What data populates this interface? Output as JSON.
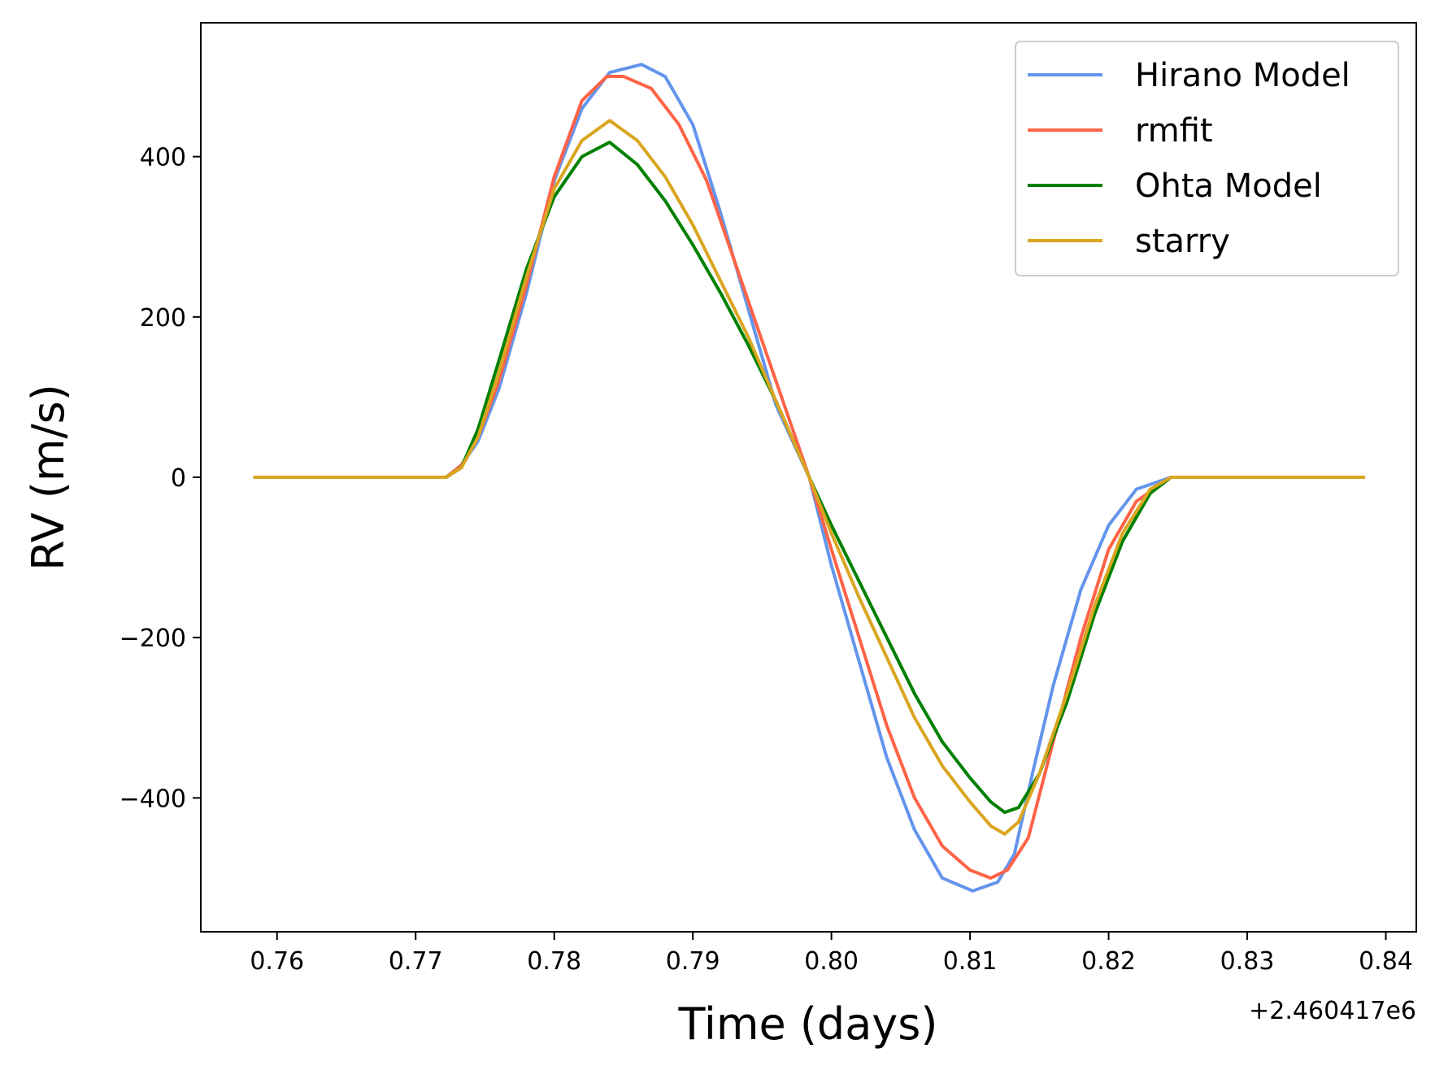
{
  "chart_data": {
    "type": "line",
    "title": "",
    "xlabel": "Time (days)",
    "ylabel": "RV (m/s)",
    "x_offset_label": "+2.460417e6",
    "xlim": [
      0.7545,
      0.8422
    ],
    "ylim": [
      -567,
      567
    ],
    "x_ticks": [
      0.76,
      0.77,
      0.78,
      0.79,
      0.8,
      0.81,
      0.82,
      0.83,
      0.84
    ],
    "x_tick_labels": [
      "0.76",
      "0.77",
      "0.78",
      "0.79",
      "0.80",
      "0.81",
      "0.82",
      "0.83",
      "0.84"
    ],
    "y_ticks": [
      -400,
      -200,
      0,
      200,
      400
    ],
    "y_tick_labels": [
      "−400",
      "−200",
      "0",
      "200",
      "400"
    ],
    "grid": false,
    "legend_position": "top-right",
    "series": [
      {
        "name": "Hirano Model",
        "color": "#6495ED",
        "points": [
          [
            0.7583,
            0
          ],
          [
            0.7722,
            0
          ],
          [
            0.7733,
            15
          ],
          [
            0.7745,
            45
          ],
          [
            0.776,
            110
          ],
          [
            0.778,
            230
          ],
          [
            0.78,
            370
          ],
          [
            0.782,
            460
          ],
          [
            0.784,
            505
          ],
          [
            0.7863,
            515
          ],
          [
            0.788,
            500
          ],
          [
            0.79,
            440
          ],
          [
            0.792,
            330
          ],
          [
            0.794,
            210
          ],
          [
            0.796,
            90
          ],
          [
            0.7984,
            0
          ],
          [
            0.8,
            -110
          ],
          [
            0.802,
            -230
          ],
          [
            0.804,
            -350
          ],
          [
            0.806,
            -440
          ],
          [
            0.808,
            -500
          ],
          [
            0.8102,
            -516
          ],
          [
            0.812,
            -505
          ],
          [
            0.8132,
            -470
          ],
          [
            0.8145,
            -370
          ],
          [
            0.816,
            -260
          ],
          [
            0.818,
            -140
          ],
          [
            0.82,
            -60
          ],
          [
            0.822,
            -15
          ],
          [
            0.8245,
            0
          ],
          [
            0.8385,
            0
          ]
        ]
      },
      {
        "name": "rmfit",
        "color": "#FF6347",
        "points": [
          [
            0.7583,
            0
          ],
          [
            0.7722,
            0
          ],
          [
            0.7733,
            15
          ],
          [
            0.7745,
            50
          ],
          [
            0.776,
            120
          ],
          [
            0.778,
            240
          ],
          [
            0.78,
            375
          ],
          [
            0.782,
            470
          ],
          [
            0.7838,
            500
          ],
          [
            0.785,
            500
          ],
          [
            0.787,
            485
          ],
          [
            0.789,
            440
          ],
          [
            0.791,
            370
          ],
          [
            0.793,
            270
          ],
          [
            0.795,
            170
          ],
          [
            0.797,
            70
          ],
          [
            0.7984,
            0
          ],
          [
            0.8,
            -90
          ],
          [
            0.802,
            -200
          ],
          [
            0.804,
            -310
          ],
          [
            0.806,
            -400
          ],
          [
            0.808,
            -460
          ],
          [
            0.81,
            -490
          ],
          [
            0.8115,
            -500
          ],
          [
            0.8127,
            -490
          ],
          [
            0.8142,
            -450
          ],
          [
            0.816,
            -330
          ],
          [
            0.818,
            -200
          ],
          [
            0.82,
            -90
          ],
          [
            0.822,
            -30
          ],
          [
            0.8245,
            0
          ],
          [
            0.8385,
            0
          ]
        ]
      },
      {
        "name": "Ohta Model",
        "color": "#008000",
        "points": [
          [
            0.7583,
            0
          ],
          [
            0.7722,
            0
          ],
          [
            0.7733,
            12
          ],
          [
            0.7745,
            60
          ],
          [
            0.776,
            145
          ],
          [
            0.778,
            260
          ],
          [
            0.78,
            350
          ],
          [
            0.782,
            400
          ],
          [
            0.784,
            418
          ],
          [
            0.786,
            390
          ],
          [
            0.788,
            345
          ],
          [
            0.79,
            290
          ],
          [
            0.792,
            230
          ],
          [
            0.794,
            165
          ],
          [
            0.796,
            95
          ],
          [
            0.7984,
            0
          ],
          [
            0.8,
            -60
          ],
          [
            0.802,
            -130
          ],
          [
            0.804,
            -200
          ],
          [
            0.806,
            -270
          ],
          [
            0.808,
            -330
          ],
          [
            0.81,
            -375
          ],
          [
            0.8115,
            -405
          ],
          [
            0.8125,
            -418
          ],
          [
            0.8135,
            -412
          ],
          [
            0.815,
            -370
          ],
          [
            0.817,
            -280
          ],
          [
            0.819,
            -170
          ],
          [
            0.821,
            -80
          ],
          [
            0.823,
            -20
          ],
          [
            0.8245,
            0
          ],
          [
            0.8385,
            0
          ]
        ]
      },
      {
        "name": "starry",
        "color": "#DAA520",
        "points": [
          [
            0.7583,
            0
          ],
          [
            0.7722,
            0
          ],
          [
            0.7733,
            12
          ],
          [
            0.7745,
            50
          ],
          [
            0.776,
            130
          ],
          [
            0.778,
            250
          ],
          [
            0.78,
            360
          ],
          [
            0.782,
            420
          ],
          [
            0.784,
            445
          ],
          [
            0.786,
            420
          ],
          [
            0.788,
            375
          ],
          [
            0.79,
            315
          ],
          [
            0.792,
            245
          ],
          [
            0.794,
            175
          ],
          [
            0.796,
            95
          ],
          [
            0.7984,
            0
          ],
          [
            0.8,
            -70
          ],
          [
            0.802,
            -150
          ],
          [
            0.804,
            -225
          ],
          [
            0.806,
            -300
          ],
          [
            0.808,
            -360
          ],
          [
            0.81,
            -405
          ],
          [
            0.8115,
            -435
          ],
          [
            0.8125,
            -445
          ],
          [
            0.8135,
            -430
          ],
          [
            0.815,
            -370
          ],
          [
            0.817,
            -270
          ],
          [
            0.819,
            -160
          ],
          [
            0.821,
            -70
          ],
          [
            0.823,
            -15
          ],
          [
            0.8245,
            0
          ],
          [
            0.8385,
            0
          ]
        ]
      }
    ]
  }
}
